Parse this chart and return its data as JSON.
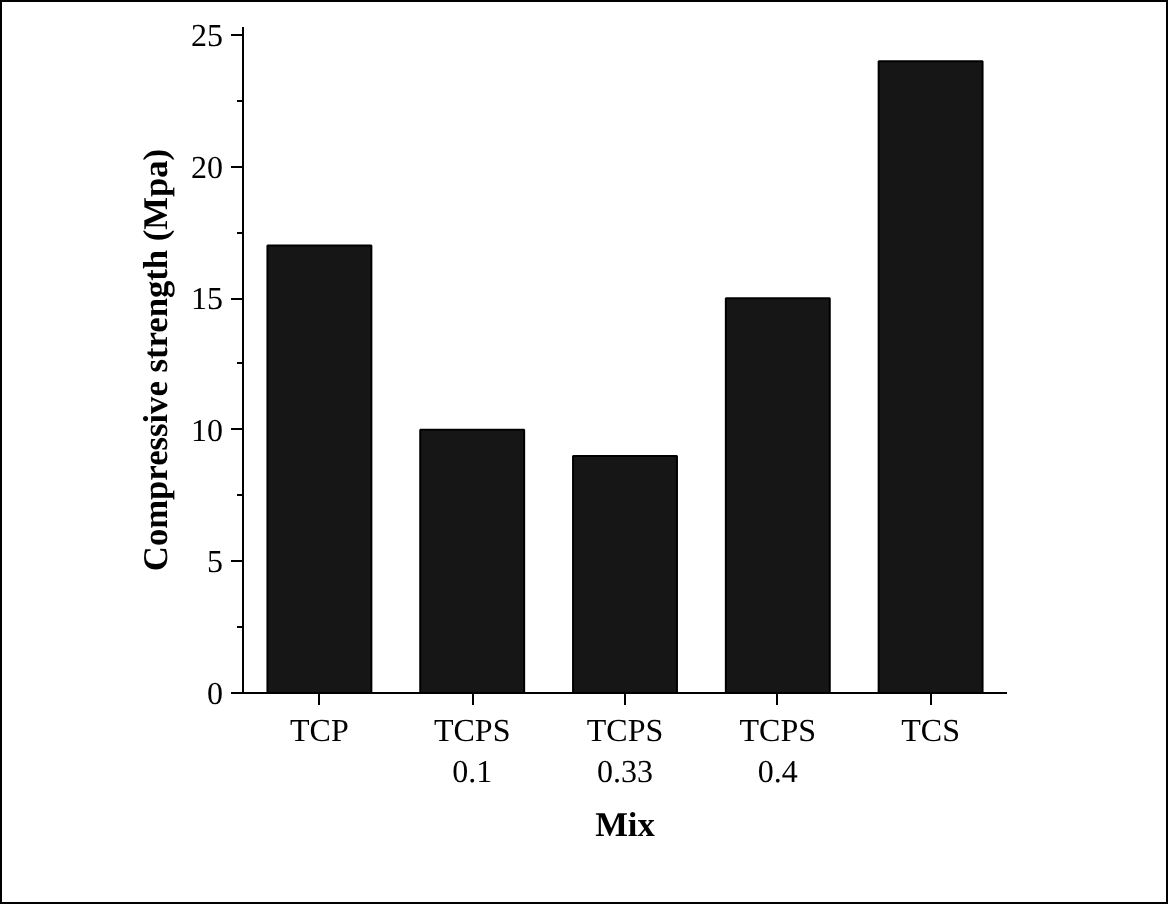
{
  "chart_data": {
    "type": "bar",
    "xlabel": "Mix",
    "ylabel": "Compressive strength (Mpa)",
    "categories": [
      "TCP",
      "TCPS 0.1",
      "TCPS 0.33",
      "TCPS 0.4",
      "TCS"
    ],
    "values": [
      17,
      10,
      9,
      15,
      24
    ],
    "color": "#161616",
    "ylim": [
      0,
      25.3
    ],
    "yticks": [
      0,
      5,
      10,
      15,
      20,
      25
    ],
    "grid": false
  }
}
